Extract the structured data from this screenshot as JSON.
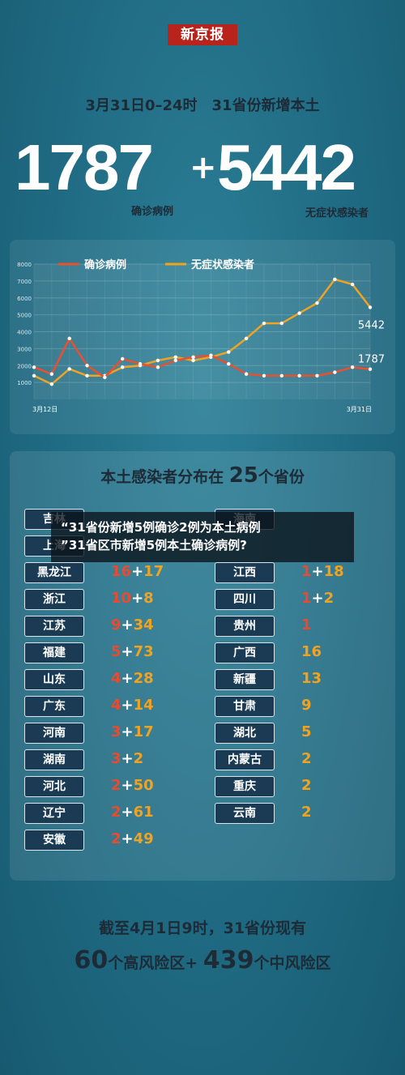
{
  "logo": "新京报",
  "subtitle": "3月31日0–24时　31省份新增本土",
  "confirmed": {
    "value": "1787",
    "label": "确诊病例"
  },
  "plus": "+",
  "asymptomatic": {
    "value": "5442",
    "label": "无症状感染者"
  },
  "chart_data": {
    "type": "line",
    "x": [
      "3月12日",
      "3月13日",
      "3月14日",
      "3月15日",
      "3月16日",
      "3月17日",
      "3月18日",
      "3月19日",
      "3月20日",
      "3月21日",
      "3月22日",
      "3月23日",
      "3月24日",
      "3月25日",
      "3月26日",
      "3月27日",
      "3月28日",
      "3月29日",
      "3月30日",
      "3月31日"
    ],
    "x_tick_labels": [
      "3月12日",
      "3月31日"
    ],
    "ylim": [
      0,
      8000
    ],
    "y_ticks": [
      1000,
      2000,
      3000,
      4000,
      5000,
      6000,
      7000,
      8000
    ],
    "legend_position": "top",
    "grid": true,
    "series": [
      {
        "name": "确诊病例",
        "color": "#e8502e",
        "values": [
          1900,
          1500,
          3600,
          2000,
          1300,
          2400,
          2100,
          1900,
          2300,
          2500,
          2600,
          2100,
          1500,
          1400,
          1400,
          1400,
          1400,
          1600,
          1900,
          1787
        ]
      },
      {
        "name": "无症状感染者",
        "color": "#f0a323",
        "values": [
          1400,
          900,
          1800,
          1400,
          1400,
          1900,
          2000,
          2300,
          2500,
          2300,
          2500,
          2800,
          3600,
          4500,
          4500,
          5100,
          5700,
          7100,
          6800,
          5442
        ]
      }
    ],
    "end_labels": [
      "5442",
      "1787"
    ]
  },
  "distribution": {
    "title_prefix": "本土感染者分布在",
    "title_number": "25",
    "title_suffix": "个省份",
    "left": [
      {
        "province": "吉林",
        "confirmed": "",
        "plus": "",
        "asym": ""
      },
      {
        "province": "上海",
        "confirmed": "",
        "plus": "",
        "asym": ""
      },
      {
        "province": "黑龙江",
        "confirmed": "16",
        "plus": "+",
        "asym": "17"
      },
      {
        "province": "浙江",
        "confirmed": "10",
        "plus": "+",
        "asym": "8"
      },
      {
        "province": "江苏",
        "confirmed": "9",
        "plus": "+",
        "asym": "34"
      },
      {
        "province": "福建",
        "confirmed": "5",
        "plus": "+",
        "asym": "73"
      },
      {
        "province": "山东",
        "confirmed": "4",
        "plus": "+",
        "asym": "28"
      },
      {
        "province": "广东",
        "confirmed": "4",
        "plus": "+",
        "asym": "14"
      },
      {
        "province": "河南",
        "confirmed": "3",
        "plus": "+",
        "asym": "17"
      },
      {
        "province": "湖南",
        "confirmed": "3",
        "plus": "+",
        "asym": "2"
      },
      {
        "province": "河北",
        "confirmed": "2",
        "plus": "+",
        "asym": "50"
      },
      {
        "province": "辽宁",
        "confirmed": "2",
        "plus": "+",
        "asym": "61"
      },
      {
        "province": "安徽",
        "confirmed": "2",
        "plus": "+",
        "asym": "49"
      }
    ],
    "right": [
      {
        "province": "海南",
        "confirmed": "",
        "plus": "",
        "asym": ""
      },
      {
        "province": "",
        "confirmed": "",
        "plus": "",
        "asym": ""
      },
      {
        "province": "江西",
        "confirmed": "1",
        "plus": "+",
        "asym": "18"
      },
      {
        "province": "四川",
        "confirmed": "1",
        "plus": "+",
        "asym": "2"
      },
      {
        "province": "贵州",
        "confirmed": "1",
        "plus": "",
        "asym": ""
      },
      {
        "province": "广西",
        "confirmed": "",
        "plus": "",
        "asym": "16"
      },
      {
        "province": "新疆",
        "confirmed": "",
        "plus": "",
        "asym": "13"
      },
      {
        "province": "甘肃",
        "confirmed": "",
        "plus": "",
        "asym": "9"
      },
      {
        "province": "湖北",
        "confirmed": "",
        "plus": "",
        "asym": "5"
      },
      {
        "province": "内蒙古",
        "confirmed": "",
        "plus": "",
        "asym": "2"
      },
      {
        "province": "重庆",
        "confirmed": "",
        "plus": "",
        "asym": "2"
      },
      {
        "province": "云南",
        "confirmed": "",
        "plus": "",
        "asym": "2"
      }
    ]
  },
  "banner": {
    "line1": "“31省份新增5例确诊2例为本土病例",
    "line2": "”31省区市新增5例本土确诊病例?"
  },
  "footer": {
    "line1": "截至4月1日9时，31省份现有",
    "high_count": "60",
    "high_label": "个高风险区+",
    "mid_count": "439",
    "mid_label": "个中风险区"
  }
}
